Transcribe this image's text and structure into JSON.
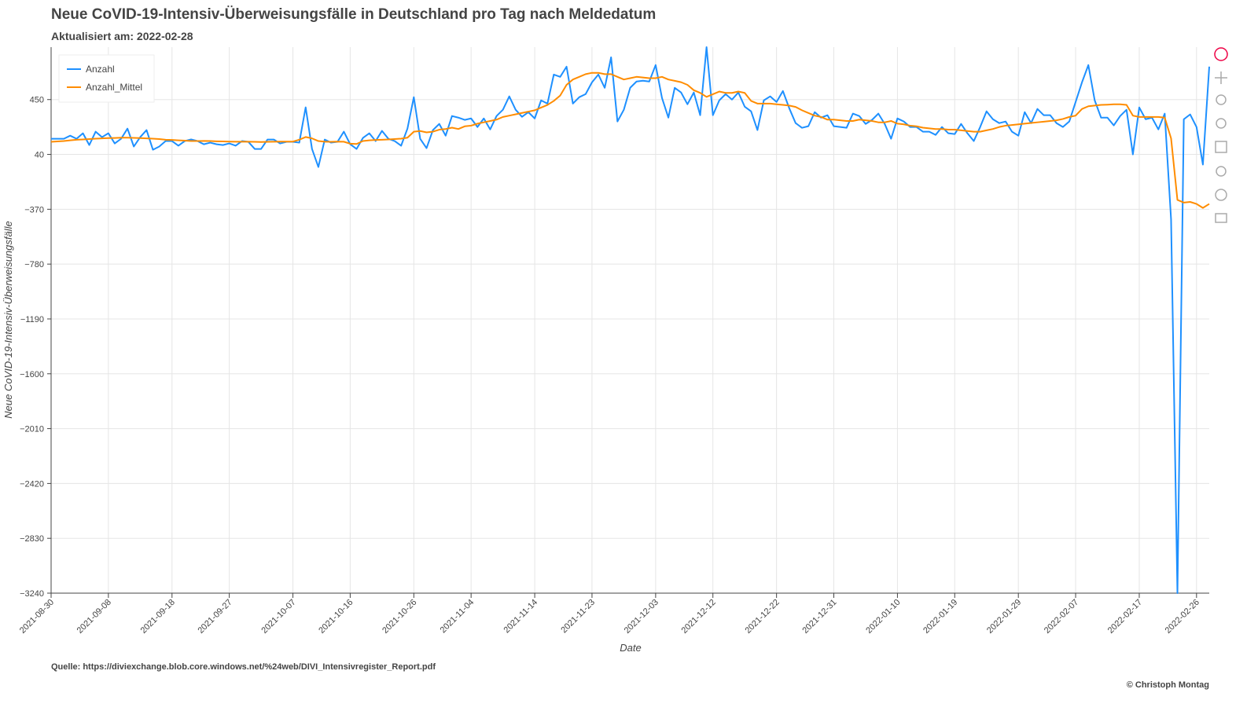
{
  "chart_data": {
    "type": "line",
    "title": "Neue CoVID-19-Intensiv-Überweisungsfälle in Deutschland pro Tag nach Meldedatum",
    "subtitle": "Aktualisiert am: 2022-02-28",
    "x_label": "Date",
    "y_label": "Neue CoVID-19-Intensiv-Überweisungsfälle",
    "source": "Quelle: https://diviexchange.blob.core.windows.net/%24web/DIVI_Intensivregister_Report.pdf",
    "copyright": "© Christoph Montag",
    "legend": "top-left",
    "grid": true,
    "xlim": [
      "2021-08-30",
      "2022-02-28"
    ],
    "ylim": [
      -3240,
      842
    ],
    "yticks": [
      450,
      40,
      {
        "value": -370,
        "label": "−370"
      },
      {
        "value": -780,
        "label": "−780"
      },
      {
        "value": -1190,
        "label": "−1190"
      },
      {
        "value": -1600,
        "label": "−1600"
      },
      {
        "value": -2010,
        "label": "−2010"
      },
      {
        "value": -2420,
        "label": "−2420"
      },
      {
        "value": -2830,
        "label": "−2830"
      },
      {
        "value": -3240,
        "label": "−3240"
      }
    ],
    "xticks": [
      "2021-08-30",
      "2021-09-08",
      "2021-09-18",
      "2021-09-27",
      "2021-10-07",
      "2021-10-16",
      "2021-10-26",
      "2021-11-04",
      "2021-11-14",
      "2021-11-23",
      "2021-12-03",
      "2021-12-12",
      "2021-12-22",
      "2021-12-31",
      "2022-01-10",
      "2022-01-19",
      "2022-01-29",
      "2022-02-07",
      "2022-02-17",
      "2022-02-26"
    ],
    "x": [
      "2021-08-30",
      "2021-08-31",
      "2021-09-01",
      "2021-09-02",
      "2021-09-03",
      "2021-09-04",
      "2021-09-05",
      "2021-09-06",
      "2021-09-07",
      "2021-09-08",
      "2021-09-09",
      "2021-09-10",
      "2021-09-11",
      "2021-09-12",
      "2021-09-13",
      "2021-09-14",
      "2021-09-15",
      "2021-09-16",
      "2021-09-17",
      "2021-09-18",
      "2021-09-19",
      "2021-09-20",
      "2021-09-21",
      "2021-09-22",
      "2021-09-23",
      "2021-09-24",
      "2021-09-25",
      "2021-09-26",
      "2021-09-27",
      "2021-09-28",
      "2021-09-29",
      "2021-09-30",
      "2021-10-01",
      "2021-10-02",
      "2021-10-03",
      "2021-10-04",
      "2021-10-05",
      "2021-10-06",
      "2021-10-07",
      "2021-10-08",
      "2021-10-09",
      "2021-10-10",
      "2021-10-11",
      "2021-10-12",
      "2021-10-13",
      "2021-10-14",
      "2021-10-15",
      "2021-10-16",
      "2021-10-17",
      "2021-10-18",
      "2021-10-19",
      "2021-10-20",
      "2021-10-21",
      "2021-10-22",
      "2021-10-23",
      "2021-10-24",
      "2021-10-25",
      "2021-10-26",
      "2021-10-27",
      "2021-10-28",
      "2021-10-29",
      "2021-10-30",
      "2021-10-31",
      "2021-11-01",
      "2021-11-02",
      "2021-11-03",
      "2021-11-04",
      "2021-11-05",
      "2021-11-06",
      "2021-11-07",
      "2021-11-08",
      "2021-11-09",
      "2021-11-10",
      "2021-11-11",
      "2021-11-12",
      "2021-11-13",
      "2021-11-14",
      "2021-11-15",
      "2021-11-16",
      "2021-11-17",
      "2021-11-18",
      "2021-11-19",
      "2021-11-20",
      "2021-11-21",
      "2021-11-22",
      "2021-11-23",
      "2021-11-24",
      "2021-11-25",
      "2021-11-26",
      "2021-11-27",
      "2021-11-28",
      "2021-11-29",
      "2021-11-30",
      "2021-12-01",
      "2021-12-02",
      "2021-12-03",
      "2021-12-04",
      "2021-12-05",
      "2021-12-06",
      "2021-12-07",
      "2021-12-08",
      "2021-12-09",
      "2021-12-10",
      "2021-12-11",
      "2021-12-12",
      "2021-12-13",
      "2021-12-14",
      "2021-12-15",
      "2021-12-16",
      "2021-12-17",
      "2021-12-18",
      "2021-12-19",
      "2021-12-20",
      "2021-12-21",
      "2021-12-22",
      "2021-12-23",
      "2021-12-24",
      "2021-12-25",
      "2021-12-26",
      "2021-12-27",
      "2021-12-28",
      "2021-12-29",
      "2021-12-30",
      "2021-12-31",
      "2022-01-01",
      "2022-01-02",
      "2022-01-03",
      "2022-01-04",
      "2022-01-05",
      "2022-01-06",
      "2022-01-07",
      "2022-01-08",
      "2022-01-09",
      "2022-01-10",
      "2022-01-11",
      "2022-01-12",
      "2022-01-13",
      "2022-01-14",
      "2022-01-15",
      "2022-01-16",
      "2022-01-17",
      "2022-01-18",
      "2022-01-19",
      "2022-01-20",
      "2022-01-21",
      "2022-01-22",
      "2022-01-23",
      "2022-01-24",
      "2022-01-25",
      "2022-01-26",
      "2022-01-27",
      "2022-01-28",
      "2022-01-29",
      "2022-01-30",
      "2022-01-31",
      "2022-02-01",
      "2022-02-02",
      "2022-02-03",
      "2022-02-04",
      "2022-02-05",
      "2022-02-06",
      "2022-02-07",
      "2022-02-08",
      "2022-02-09",
      "2022-02-10",
      "2022-02-11",
      "2022-02-12",
      "2022-02-13",
      "2022-02-14",
      "2022-02-15",
      "2022-02-16",
      "2022-02-17",
      "2022-02-18",
      "2022-02-19",
      "2022-02-20",
      "2022-02-21",
      "2022-02-22",
      "2022-02-23",
      "2022-02-24",
      "2022-02-25",
      "2022-02-26",
      "2022-02-27",
      "2022-02-28"
    ],
    "series": [
      {
        "name": "Anzahl",
        "color": "#1e90ff",
        "values": [
          157,
          157,
          157,
          180,
          157,
          198,
          110,
          210,
          169,
          198,
          122,
          157,
          233,
          99,
          169,
          222,
          75,
          99,
          140,
          140,
          105,
          140,
          152,
          140,
          116,
          128,
          116,
          110,
          122,
          105,
          140,
          134,
          81,
          81,
          151,
          151,
          122,
          134,
          134,
          128,
          392,
          81,
          -54,
          151,
          128,
          134,
          210,
          116,
          81,
          163,
          198,
          140,
          216,
          157,
          140,
          105,
          233,
          468,
          157,
          87,
          222,
          268,
          180,
          327,
          315,
          298,
          309,
          245,
          309,
          227,
          327,
          374,
          474,
          374,
          321,
          356,
          309,
          444,
          420,
          637,
          620,
          696,
          420,
          468,
          491,
          579,
          637,
          538,
          766,
          286,
          374,
          538,
          585,
          591,
          585,
          708,
          462,
          315,
          538,
          503,
          415,
          503,
          333,
          842,
          333,
          444,
          491,
          450,
          503,
          397,
          362,
          222,
          444,
          474,
          432,
          514,
          385,
          274,
          239,
          251,
          356,
          315,
          333,
          251,
          245,
          239,
          345,
          327,
          268,
          298,
          345,
          268,
          157,
          309,
          286,
          245,
          245,
          210,
          210,
          186,
          245,
          198,
          192,
          268,
          198,
          140,
          245,
          362,
          303,
          274,
          286,
          210,
          180,
          356,
          274,
          380,
          333,
          333,
          274,
          245,
          286,
          432,
          579,
          708,
          444,
          315,
          315,
          257,
          327,
          374,
          40,
          391,
          303,
          315,
          227,
          345,
          -446,
          -3240,
          303,
          339,
          245,
          -36,
          696
        ]
      },
      {
        "name": "Anzahl_Mittel",
        "color": "#ff8c00",
        "values": [
          134,
          137,
          140,
          145,
          150,
          152,
          155,
          158,
          160,
          162,
          163,
          165,
          165,
          164,
          162,
          160,
          158,
          155,
          150,
          148,
          145,
          143,
          140,
          140,
          141,
          140,
          138,
          137,
          136,
          135,
          135,
          135,
          134,
          133,
          134,
          135,
          136,
          136,
          136,
          150,
          170,
          160,
          140,
          135,
          134,
          136,
          135,
          120,
          118,
          140,
          145,
          148,
          150,
          152,
          155,
          158,
          165,
          210,
          215,
          205,
          210,
          225,
          230,
          240,
          230,
          250,
          255,
          270,
          280,
          290,
          300,
          320,
          330,
          340,
          350,
          360,
          370,
          390,
          410,
          440,
          480,
          560,
          600,
          620,
          640,
          650,
          650,
          640,
          640,
          620,
          600,
          610,
          620,
          615,
          610,
          610,
          620,
          600,
          590,
          580,
          560,
          520,
          500,
          470,
          490,
          510,
          500,
          500,
          510,
          500,
          440,
          420,
          420,
          420,
          415,
          410,
          405,
          395,
          370,
          350,
          330,
          320,
          300,
          300,
          295,
          290,
          290,
          300,
          295,
          290,
          280,
          280,
          290,
          270,
          265,
          255,
          250,
          240,
          235,
          230,
          230,
          225,
          225,
          220,
          215,
          210,
          210,
          220,
          230,
          245,
          255,
          260,
          265,
          270,
          275,
          280,
          285,
          290,
          295,
          305,
          320,
          330,
          380,
          400,
          405,
          410,
          412,
          415,
          415,
          410,
          330,
          320,
          320,
          320,
          320,
          315,
          160,
          -300,
          -320,
          -315,
          -330,
          -360,
          -330
        ]
      }
    ]
  }
}
